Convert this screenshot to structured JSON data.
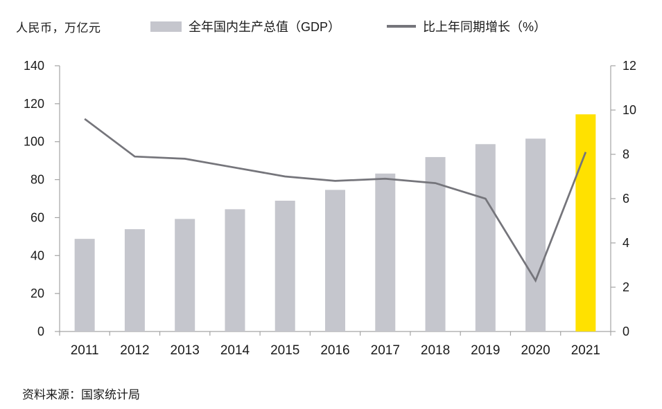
{
  "header": {
    "unit_label": "人民币，万亿元",
    "legend": [
      {
        "label": "全年国内生产总值（GDP）",
        "swatch": "bar-swatch-icon",
        "color": "#C5C6CD"
      },
      {
        "label": "比上年同期增长（%）",
        "swatch": "line-swatch-icon",
        "color": "#75757B"
      }
    ]
  },
  "footer": {
    "source": "资料来源：国家统计局"
  },
  "colors": {
    "bar": "#C5C6CD",
    "bar_highlight": "#FFE100",
    "line": "#75757B",
    "axis": "#A3A3A3",
    "text": "#1A1A1A",
    "background": "#FFFFFF"
  },
  "chart_data": {
    "type": "bar",
    "subtype": "bar+line combo, dual axis",
    "title": "",
    "categories": [
      "2011",
      "2012",
      "2013",
      "2014",
      "2015",
      "2016",
      "2017",
      "2018",
      "2019",
      "2020",
      "2021"
    ],
    "series": [
      {
        "name": "全年国内生产总值（GDP）",
        "type": "bar",
        "axis": "left",
        "values": [
          48.8,
          53.9,
          59.3,
          64.4,
          68.9,
          74.6,
          83.2,
          91.9,
          98.7,
          101.6,
          114.4
        ],
        "color": "#C5C6CD",
        "highlight_index": 10,
        "highlight_color": "#FFE100"
      },
      {
        "name": "比上年同期增长（%）",
        "type": "line",
        "axis": "right",
        "values": [
          9.6,
          7.9,
          7.8,
          7.4,
          7.0,
          6.8,
          6.9,
          6.7,
          6.0,
          2.3,
          8.1
        ],
        "color": "#75757B"
      }
    ],
    "left_axis": {
      "label": "人民币，万亿元",
      "range": [
        0,
        140
      ],
      "ticks": [
        0,
        20,
        40,
        60,
        80,
        100,
        120,
        140
      ]
    },
    "right_axis": {
      "label": "%",
      "range": [
        0,
        12
      ],
      "ticks": [
        0,
        2,
        4,
        6,
        8,
        10,
        12
      ]
    },
    "grid": false,
    "legend_position": "top"
  }
}
